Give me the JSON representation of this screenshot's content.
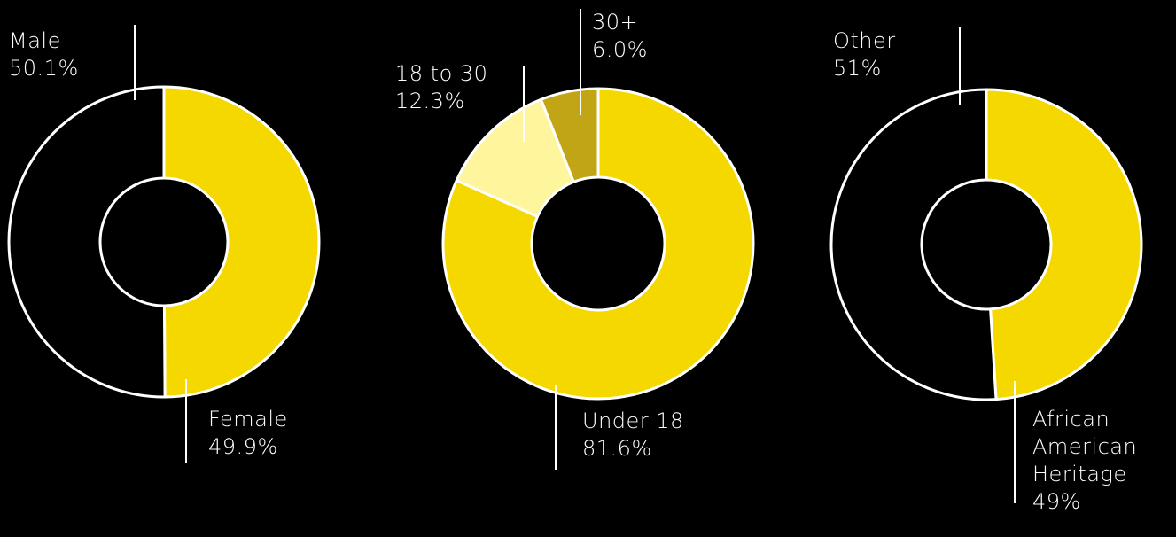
{
  "chart_data": [
    {
      "type": "pie",
      "donut": true,
      "categories": [
        "Female",
        "Male"
      ],
      "values": [
        49.9,
        50.1
      ],
      "value_labels": [
        "49.9%",
        "50.1%"
      ],
      "colors": [
        "#f5d800",
        "#000000"
      ]
    },
    {
      "type": "pie",
      "donut": true,
      "categories": [
        "Under 18",
        "18 to 30",
        "30+"
      ],
      "values": [
        81.6,
        12.3,
        6.0
      ],
      "value_labels": [
        "81.6%",
        "12.3%",
        "6.0%"
      ],
      "colors": [
        "#f5d800",
        "#fff59d",
        "#c2a515"
      ]
    },
    {
      "type": "pie",
      "donut": true,
      "categories": [
        "African American Heritage",
        "Other"
      ],
      "values": [
        49,
        51
      ],
      "value_labels": [
        "49%",
        "51%"
      ],
      "colors": [
        "#f5d800",
        "#000000"
      ]
    }
  ]
}
